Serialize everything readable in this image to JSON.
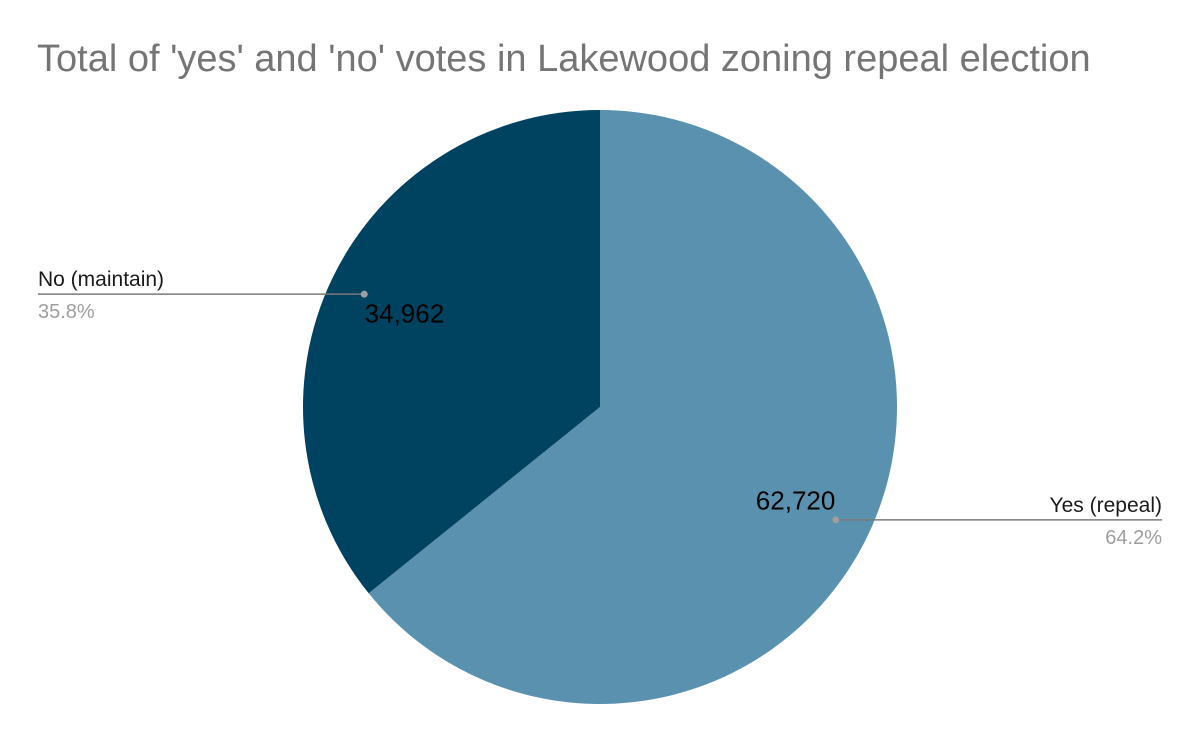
{
  "chart_data": {
    "type": "pie",
    "title": "Total of 'yes' and 'no' votes in Lakewood zoning repeal election",
    "slices": [
      {
        "label": "Yes (repeal)",
        "value": 62720,
        "value_label": "62,720",
        "percent_label": "64.2%",
        "color": "#5a91ae"
      },
      {
        "label": "No (maintain)",
        "value": 34962,
        "value_label": "34,962",
        "percent_label": "35.8%",
        "color": "#004361"
      }
    ],
    "start_angle": "12 o'clock",
    "direction": "clockwise",
    "legend": "callout labels outside the pie"
  }
}
